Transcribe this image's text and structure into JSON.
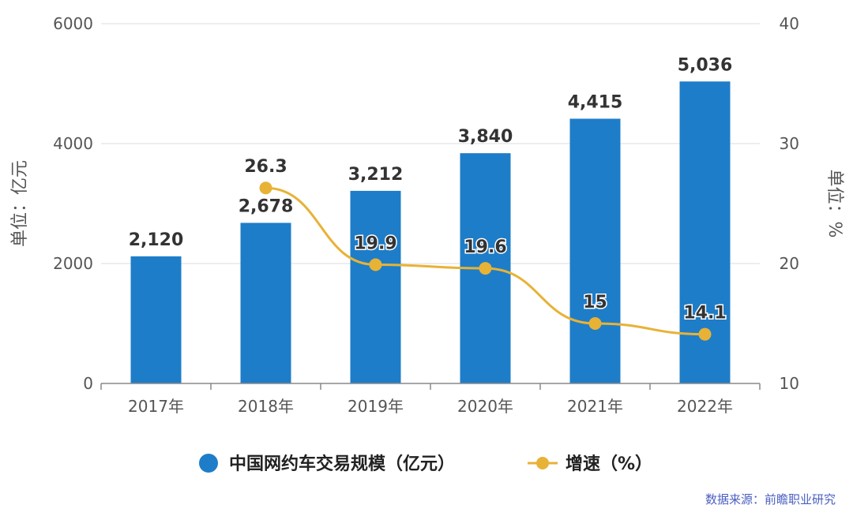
{
  "chart_data": {
    "type": "bar",
    "categories": [
      "2017年",
      "2018年",
      "2019年",
      "2020年",
      "2021年",
      "2022年"
    ],
    "series": [
      {
        "name": "中国网约车交易规模（亿元）",
        "type": "bar",
        "axis": "left",
        "values": [
          2120,
          2678,
          3212,
          3840,
          4415,
          5036
        ],
        "labels": [
          "2,120",
          "2,678",
          "3,212",
          "3,840",
          "4,415",
          "5,036"
        ],
        "color": "#1e7dc8"
      },
      {
        "name": "增速（%）",
        "type": "line",
        "axis": "right",
        "values": [
          null,
          26.3,
          19.9,
          19.6,
          15,
          14.1
        ],
        "labels": [
          "",
          "26.3",
          "19.9",
          "19.6",
          "15",
          "14.1"
        ],
        "color": "#e8b236"
      }
    ],
    "ylabel": "单位：亿元",
    "y2label": "单位：%",
    "ylim": [
      0,
      6000
    ],
    "y2lim": [
      10,
      40
    ],
    "yticks": [
      "0",
      "2000",
      "4000",
      "6000"
    ],
    "y2ticks": [
      "10",
      "20",
      "30",
      "40"
    ],
    "grid": true,
    "legend_position": "bottom",
    "source": "数据来源：前瞻职业研究"
  }
}
